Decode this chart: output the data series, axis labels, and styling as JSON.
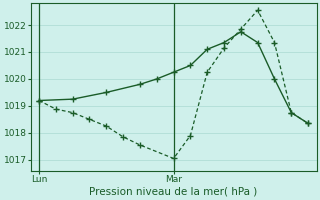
{
  "bg_color": "#cff0eb",
  "grid_color": "#b0ddd6",
  "line_color": "#1a5c28",
  "xlabel": "Pression niveau de la mer( hPa )",
  "ylim": [
    1016.6,
    1022.8
  ],
  "yticks": [
    1017,
    1018,
    1019,
    1020,
    1021,
    1022
  ],
  "xtick_labels": [
    "Lun",
    "Mar"
  ],
  "xtick_positions": [
    0,
    8
  ],
  "vline_positions": [
    0,
    8
  ],
  "line1_x": [
    0,
    2,
    4,
    6,
    7,
    8,
    9,
    10,
    11,
    12,
    13,
    14,
    15,
    16
  ],
  "line1_y": [
    1019.2,
    1019.25,
    1019.5,
    1019.8,
    1020.0,
    1020.25,
    1020.5,
    1021.1,
    1021.35,
    1021.75,
    1021.35,
    1020.0,
    1018.75,
    1018.35
  ],
  "line2_x": [
    0,
    1,
    2,
    3,
    4,
    5,
    6,
    8,
    9,
    10,
    11,
    12,
    13,
    14,
    15,
    16
  ],
  "line2_y": [
    1019.2,
    1018.88,
    1018.75,
    1018.5,
    1018.25,
    1017.85,
    1017.55,
    1017.05,
    1017.9,
    1020.25,
    1021.15,
    1021.85,
    1022.55,
    1021.35,
    1018.75,
    1018.35
  ],
  "figsize": [
    3.2,
    2.0
  ],
  "dpi": 100
}
